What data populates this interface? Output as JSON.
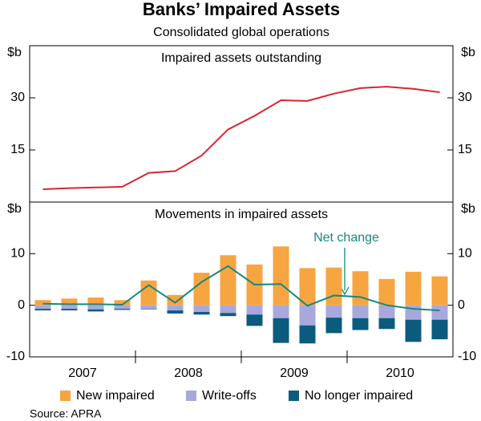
{
  "title": "Banks’ Impaired Assets",
  "subtitle": "Consolidated global operations",
  "source": "Source: APRA",
  "chart_data": [
    {
      "type": "line",
      "title": "Impaired assets outstanding",
      "y_label": "$b",
      "categories": [
        null,
        null,
        null,
        null,
        null,
        null,
        null,
        null,
        null,
        null,
        null,
        null,
        null,
        null,
        null,
        null
      ],
      "ylim": [
        0,
        45
      ],
      "yticks": [
        15,
        30
      ],
      "series": [
        {
          "name": null,
          "color": "#d7262e",
          "values": [
            3.7,
            4.0,
            4.2,
            4.4,
            8.4,
            8.9,
            13.4,
            20.9,
            24.8,
            29.3,
            29.1,
            31.2,
            32.8,
            33.2,
            32.6,
            31.6
          ]
        }
      ]
    },
    {
      "type": "bar",
      "title": "Movements in impaired assets",
      "y_label": "$b",
      "categories": [
        null,
        null,
        null,
        null,
        null,
        null,
        null,
        null,
        null,
        null,
        null,
        null,
        null,
        null,
        null,
        null
      ],
      "x_labels": [
        "2007",
        "2008",
        "2009",
        "2010"
      ],
      "ylim": [
        -10,
        20
      ],
      "yticks": [
        -10,
        0,
        10
      ],
      "series": [
        {
          "name": "New impaired",
          "color": "#f7a541",
          "values": [
            1.0,
            1.3,
            1.5,
            1.0,
            4.8,
            2.0,
            6.3,
            9.7,
            7.9,
            11.4,
            7.2,
            7.3,
            6.6,
            5.1,
            6.5,
            5.6
          ]
        },
        {
          "name": "Write-offs",
          "color": "#a9a8dc",
          "values": [
            -0.7,
            -0.7,
            -0.8,
            -0.7,
            -0.7,
            -1.0,
            -1.3,
            -1.5,
            -1.8,
            -2.5,
            -3.9,
            -2.4,
            -2.5,
            -2.5,
            -2.8,
            -2.8
          ]
        },
        {
          "name": "No longer impaired",
          "color": "#0b5b7e",
          "values": [
            -0.3,
            -0.3,
            -0.4,
            -0.2,
            -0.1,
            -0.6,
            -0.5,
            -0.6,
            -2.2,
            -4.8,
            -3.5,
            -3.0,
            -2.3,
            -2.1,
            -4.3,
            -3.8
          ]
        },
        {
          "name": "Net change",
          "color": "#168a78",
          "type": "line",
          "values": [
            0.3,
            0.2,
            0.2,
            0.1,
            3.9,
            0.5,
            4.5,
            7.6,
            4.0,
            4.1,
            -0.1,
            1.9,
            1.6,
            0.0,
            -0.7,
            -1.0
          ]
        }
      ]
    }
  ]
}
